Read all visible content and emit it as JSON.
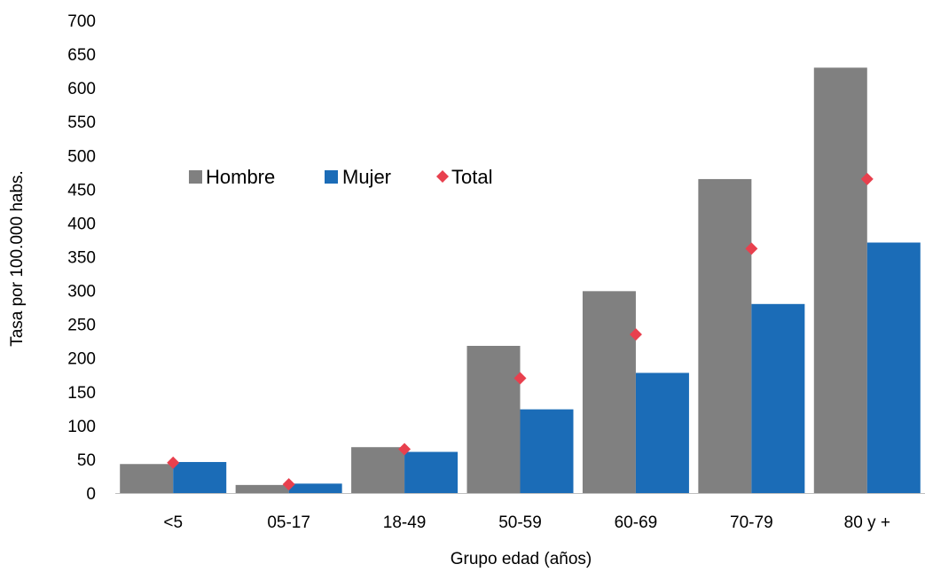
{
  "colors": {
    "hombre": "#808080",
    "mujer": "#1b6cb7",
    "total": "#e8404e",
    "axis": "#bfbfbf"
  },
  "chart_data": {
    "type": "bar",
    "title": "",
    "xlabel": "Grupo edad (años)",
    "ylabel": "Tasa por 100.000 habs.",
    "ylim": [
      0,
      700
    ],
    "yticks": [
      0,
      50,
      100,
      150,
      200,
      250,
      300,
      350,
      400,
      450,
      500,
      550,
      600,
      650,
      700
    ],
    "grid": false,
    "legend_position": "center-left",
    "categories": [
      "<5",
      "05-17",
      "18-49",
      "50-59",
      "60-69",
      "70-79",
      "80 y +"
    ],
    "series": [
      {
        "name": "Hombre",
        "type": "bar",
        "values": [
          43,
          12,
          68,
          218,
          299,
          465,
          630
        ]
      },
      {
        "name": "Mujer",
        "type": "bar",
        "values": [
          46,
          14,
          61,
          124,
          178,
          280,
          371
        ]
      },
      {
        "name": "Total",
        "type": "marker",
        "values": [
          45,
          13,
          65,
          170,
          235,
          362,
          465
        ]
      }
    ]
  }
}
